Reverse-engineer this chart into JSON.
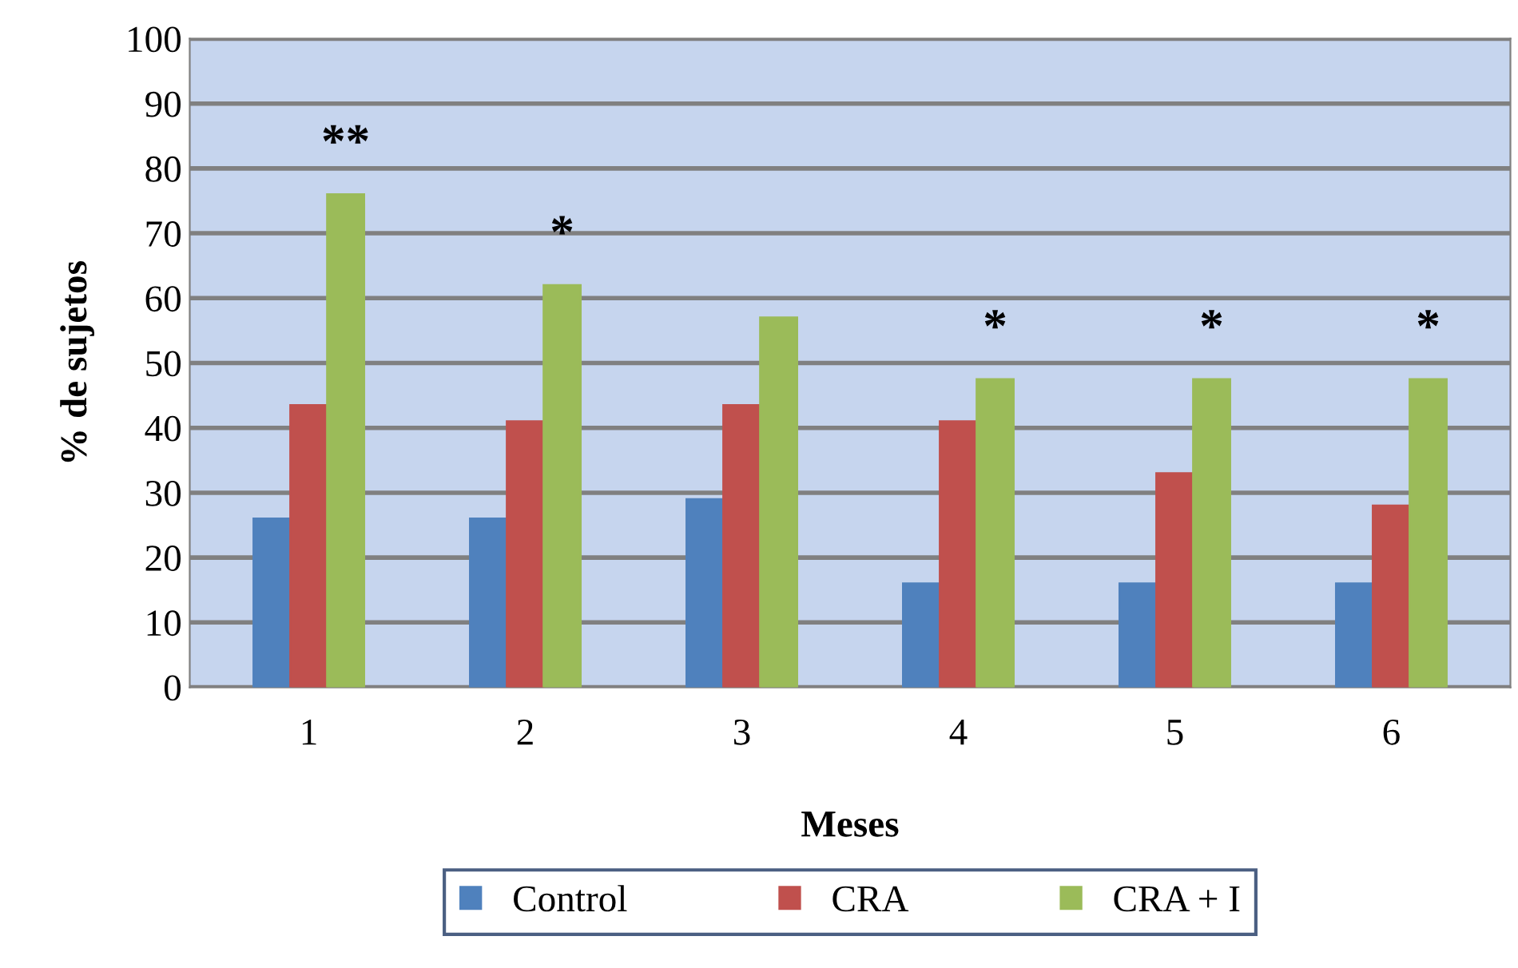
{
  "chart_data": {
    "type": "bar",
    "xlabel": "Meses",
    "ylabel": "% de sujetos",
    "categories": [
      "1",
      "2",
      "3",
      "4",
      "5",
      "6"
    ],
    "series": [
      {
        "name": "Control",
        "color": "#4f81bd",
        "values": [
          26,
          26,
          29,
          16,
          16,
          16
        ]
      },
      {
        "name": "CRA",
        "color": "#c0504d",
        "values": [
          43.5,
          41,
          43.5,
          41,
          33,
          28
        ]
      },
      {
        "name": "CRA + I",
        "color": "#9bbb59",
        "values": [
          76,
          62,
          57,
          47.5,
          47.5,
          47.5
        ]
      }
    ],
    "ylim": [
      0,
      100
    ],
    "yticks": [
      0,
      10,
      20,
      30,
      40,
      50,
      60,
      70,
      80,
      90,
      100
    ],
    "grid": "y",
    "legend": "bottom",
    "annotations": [
      "**",
      "*",
      "*",
      "*",
      "*"
    ]
  }
}
